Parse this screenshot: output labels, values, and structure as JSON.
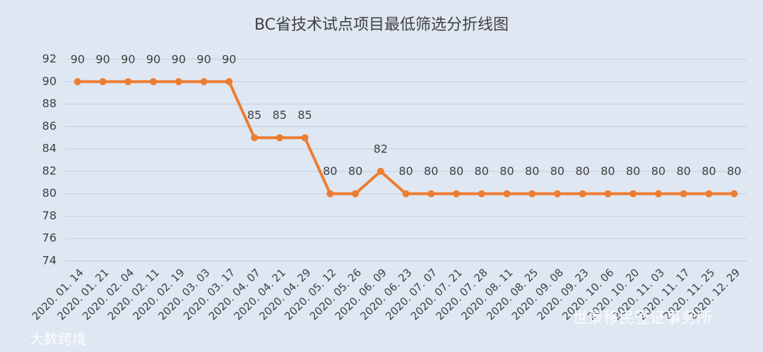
{
  "chart_data": {
    "type": "line",
    "title": "BC省技术试点项目最低筛选分折线图",
    "categories": [
      "2020. 01. 14",
      "2020. 01. 21",
      "2020. 02. 04",
      "2020. 02. 11",
      "2020. 02. 19",
      "2020. 03. 03",
      "2020. 03. 17",
      "2020. 04. 07",
      "2020. 04. 21",
      "2020. 04. 29",
      "2020. 05. 12",
      "2020. 05. 26",
      "2020. 06. 09",
      "2020. 06. 23",
      "2020. 07. 07",
      "2020. 07. 21",
      "2020. 07. 28",
      "2020. 08. 11",
      "2020. 08. 25",
      "2020. 09. 08",
      "2020. 09. 23",
      "2020. 10. 06",
      "2020. 10. 20",
      "2020. 11. 03",
      "2020. 11. 17",
      "2020. 11. 25",
      "2020. 12. 29"
    ],
    "values": [
      90,
      90,
      90,
      90,
      90,
      90,
      90,
      85,
      85,
      85,
      80,
      80,
      82,
      80,
      80,
      80,
      80,
      80,
      80,
      80,
      80,
      80,
      80,
      80,
      80,
      80,
      80
    ],
    "color": "#ed7d31",
    "ylim": [
      74,
      92
    ],
    "yticks": [
      74,
      76,
      78,
      80,
      82,
      84,
      86,
      88,
      90,
      92
    ],
    "grid": true,
    "watermarks": [
      "大数跨境",
      "世景移民签证事务所"
    ]
  }
}
